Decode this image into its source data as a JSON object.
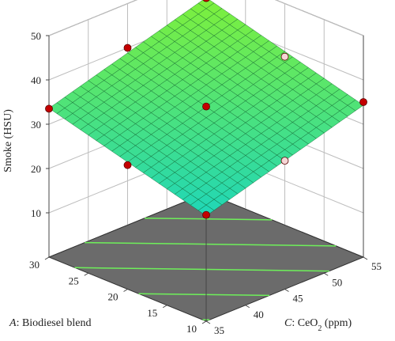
{
  "chart_data": {
    "type": "surface3d",
    "title": "",
    "z_axis": {
      "label": "Smoke (HSU)",
      "ticks": [
        10,
        20,
        30,
        40,
        50
      ],
      "range": [
        0,
        50
      ]
    },
    "x_axis": {
      "label_prefix": "A",
      "label_rest": ": Biodiesel blend",
      "ticks": [
        30,
        25,
        20,
        15,
        10
      ],
      "range": [
        10,
        30
      ]
    },
    "y_axis": {
      "label_prefix": "C",
      "label_rest": ": CeO",
      "label_sub": "2",
      "label_unit": " (ppm)",
      "ticks": [
        35,
        40,
        45,
        50,
        55
      ],
      "range": [
        35,
        55
      ]
    },
    "surface": {
      "color_low": "#1fd6b8",
      "color_high": "#7ff03a",
      "grid": "#0b5c2a"
    },
    "contour_floor_color": "#6b6b6b",
    "contour_line_color": "#6ef05a",
    "design_points": [
      {
        "A": 30,
        "C": 35,
        "Smoke": 33.5,
        "marker": "red"
      },
      {
        "A": 30,
        "C": 55,
        "Smoke": 44,
        "marker": "red"
      },
      {
        "A": 10,
        "C": 55,
        "Smoke": 35,
        "marker": "red"
      },
      {
        "A": 10,
        "C": 35,
        "Smoke": 24,
        "marker": "red"
      },
      {
        "A": 20,
        "C": 45,
        "Smoke": 34,
        "marker": "red"
      },
      {
        "A": 30,
        "C": 45,
        "Smoke": 40,
        "marker": "red"
      },
      {
        "A": 20,
        "C": 35,
        "Smoke": 28,
        "marker": "red"
      },
      {
        "A": 10,
        "C": 45,
        "Smoke": 29,
        "marker": "pink"
      },
      {
        "A": 20,
        "C": 55,
        "Smoke": 38,
        "marker": "pink"
      }
    ]
  }
}
